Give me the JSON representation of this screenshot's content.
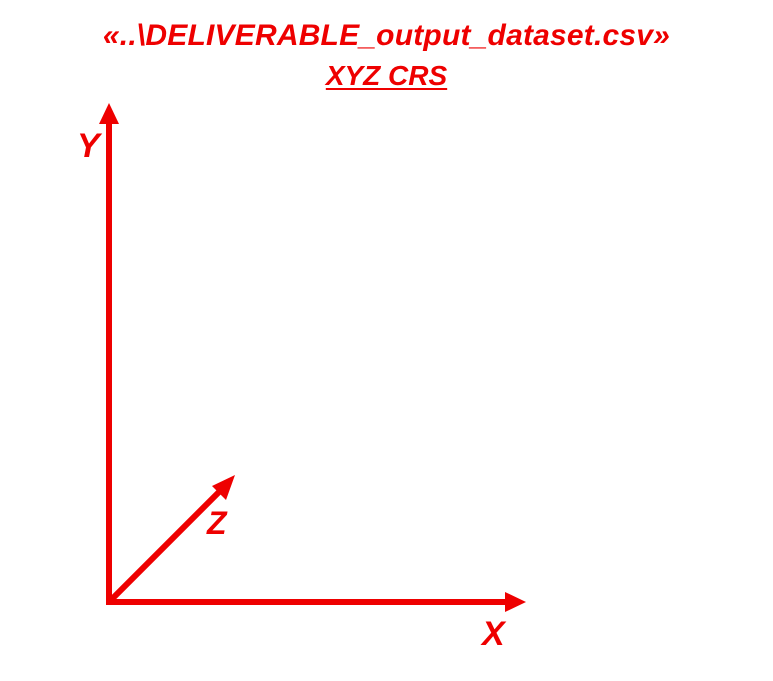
{
  "header": {
    "title": "«..\\DELIVERABLE_output_dataset.csv»",
    "subtitle": "XYZ CRS"
  },
  "axes": {
    "x_label": "X",
    "y_label": "Y",
    "z_label": "Z",
    "color": "#ee0000"
  }
}
